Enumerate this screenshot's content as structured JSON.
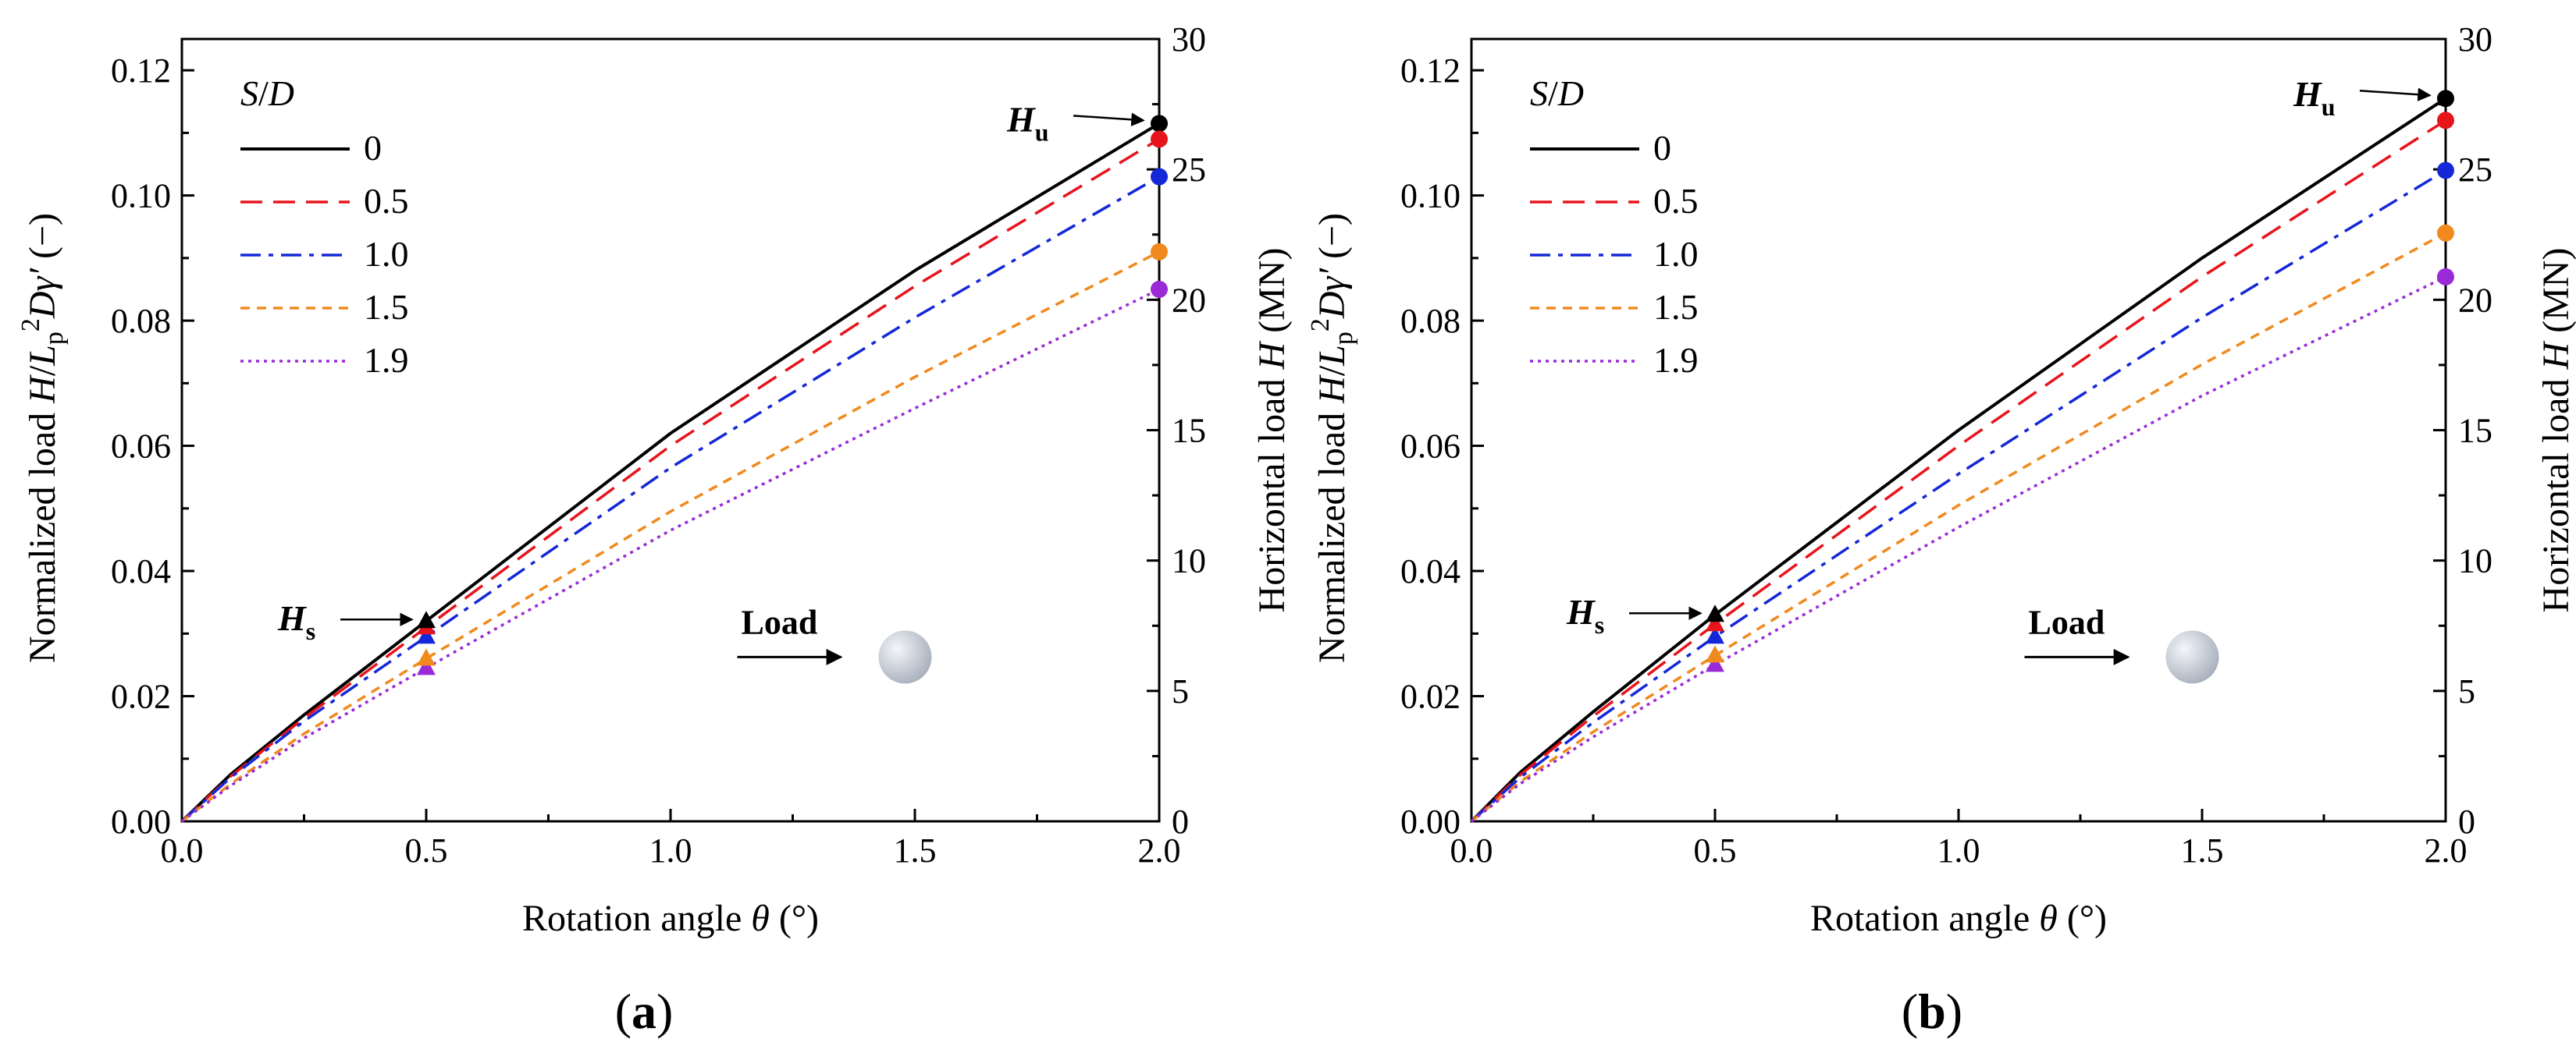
{
  "colors": {
    "s0": "#000000",
    "s05": "#e8141c",
    "s10": "#1428d8",
    "s15": "#f08a1e",
    "s19": "#9a2ad8"
  },
  "labels": {
    "y_left_part1": "Normalized load ",
    "y_left_H": "H",
    "y_left_slash": "/",
    "y_left_L": "L",
    "y_left_p": "p",
    "y_left_2": "2",
    "y_left_D": "D",
    "y_left_gamma": "γ′",
    "y_left_end": " (−)",
    "y_right_part1": "Horizontal load ",
    "y_right_H": "H",
    "y_right_end": " (MN)",
    "x_part1": "Rotation angle ",
    "x_theta": "θ",
    "x_end": " (°)",
    "legend_S": "S",
    "legend_slash": "/",
    "legend_D": "D",
    "Hu_H": "H",
    "Hu_sub": "u",
    "Hs_H": "H",
    "Hs_sub": "s",
    "load": "Load"
  },
  "chart_data": [
    {
      "type": "line",
      "panel_label": "a",
      "xlabel": "Rotation angle θ (°)",
      "ylabel_left": "Normalized load H/Lp²Dγ′ (−)",
      "ylabel_right": "Horizontal load H (MN)",
      "xlim": [
        0,
        2.0
      ],
      "ylim_left": [
        0,
        0.125
      ],
      "ylim_right": [
        0,
        30
      ],
      "x_ticks": [
        "0.0",
        "0.5",
        "1.0",
        "1.5",
        "2.0"
      ],
      "y_left_ticks": [
        "0.00",
        "0.02",
        "0.04",
        "0.06",
        "0.08",
        "0.10",
        "0.12"
      ],
      "y_right_ticks": [
        "0",
        "5",
        "10",
        "15",
        "20",
        "25",
        "30"
      ],
      "legend_title": "S/D",
      "series": [
        {
          "name": "0",
          "style": "solid",
          "x": [
            0,
            0.1,
            0.25,
            0.5,
            1.0,
            1.5,
            2.0
          ],
          "y": [
            0,
            0.0075,
            0.017,
            0.032,
            0.062,
            0.088,
            0.1115
          ],
          "Hs": 0.032,
          "Hu": 0.1115
        },
        {
          "name": "0.5",
          "style": "dash",
          "x": [
            0,
            0.1,
            0.25,
            0.5,
            1.0,
            1.5,
            2.0
          ],
          "y": [
            0,
            0.0072,
            0.0165,
            0.031,
            0.06,
            0.0855,
            0.109
          ],
          "Hs": 0.031,
          "Hu": 0.109
        },
        {
          "name": "1.0",
          "style": "dashdot",
          "x": [
            0,
            0.1,
            0.25,
            0.5,
            1.0,
            1.5,
            2.0
          ],
          "y": [
            0,
            0.007,
            0.016,
            0.0295,
            0.0565,
            0.0805,
            0.103
          ],
          "Hs": 0.0295,
          "Hu": 0.103
        },
        {
          "name": "1.5",
          "style": "shortdash",
          "x": [
            0,
            0.1,
            0.25,
            0.5,
            1.0,
            1.5,
            2.0
          ],
          "y": [
            0,
            0.006,
            0.014,
            0.026,
            0.0495,
            0.071,
            0.091
          ],
          "Hs": 0.026,
          "Hu": 0.091
        },
        {
          "name": "1.9",
          "style": "dot",
          "x": [
            0,
            0.1,
            0.25,
            0.5,
            1.0,
            1.5,
            2.0
          ],
          "y": [
            0,
            0.0057,
            0.0133,
            0.0245,
            0.0465,
            0.066,
            0.085
          ],
          "Hs": 0.0245,
          "Hu": 0.085
        }
      ],
      "annotations": [
        "Hu",
        "Hs",
        "Load"
      ]
    },
    {
      "type": "line",
      "panel_label": "b",
      "xlabel": "Rotation angle θ (°)",
      "ylabel_left": "Normalized load H/Lp²Dγ′ (−)",
      "ylabel_right": "Horizontal load H (MN)",
      "xlim": [
        0,
        2.0
      ],
      "ylim_left": [
        0,
        0.125
      ],
      "ylim_right": [
        0,
        30
      ],
      "x_ticks": [
        "0.0",
        "0.5",
        "1.0",
        "1.5",
        "2.0"
      ],
      "y_left_ticks": [
        "0.00",
        "0.02",
        "0.04",
        "0.06",
        "0.08",
        "0.10",
        "0.12"
      ],
      "y_right_ticks": [
        "0",
        "5",
        "10",
        "15",
        "20",
        "25",
        "30"
      ],
      "legend_title": "S/D",
      "series": [
        {
          "name": "0",
          "style": "solid",
          "x": [
            0,
            0.1,
            0.25,
            0.5,
            1.0,
            1.5,
            2.0
          ],
          "y": [
            0,
            0.0078,
            0.0175,
            0.033,
            0.0625,
            0.09,
            0.1155
          ],
          "Hs": 0.033,
          "Hu": 0.1155
        },
        {
          "name": "0.5",
          "style": "dash",
          "x": [
            0,
            0.1,
            0.25,
            0.5,
            1.0,
            1.5,
            2.0
          ],
          "y": [
            0,
            0.0074,
            0.0168,
            0.0315,
            0.06,
            0.087,
            0.112
          ],
          "Hs": 0.0315,
          "Hu": 0.112
        },
        {
          "name": "1.0",
          "style": "dashdot",
          "x": [
            0,
            0.1,
            0.25,
            0.5,
            1.0,
            1.5,
            2.0
          ],
          "y": [
            0,
            0.007,
            0.0158,
            0.0295,
            0.0555,
            0.0805,
            0.104
          ],
          "Hs": 0.0295,
          "Hu": 0.104
        },
        {
          "name": "1.5",
          "style": "shortdash",
          "x": [
            0,
            0.1,
            0.25,
            0.5,
            1.0,
            1.5,
            2.0
          ],
          "y": [
            0,
            0.0063,
            0.0143,
            0.0265,
            0.0505,
            0.073,
            0.094
          ],
          "Hs": 0.0265,
          "Hu": 0.094
        },
        {
          "name": "1.9",
          "style": "dot",
          "x": [
            0,
            0.1,
            0.25,
            0.5,
            1.0,
            1.5,
            2.0
          ],
          "y": [
            0,
            0.006,
            0.0135,
            0.025,
            0.047,
            0.068,
            0.087
          ],
          "Hs": 0.025,
          "Hu": 0.087
        }
      ],
      "annotations": [
        "Hu",
        "Hs",
        "Load"
      ]
    }
  ]
}
